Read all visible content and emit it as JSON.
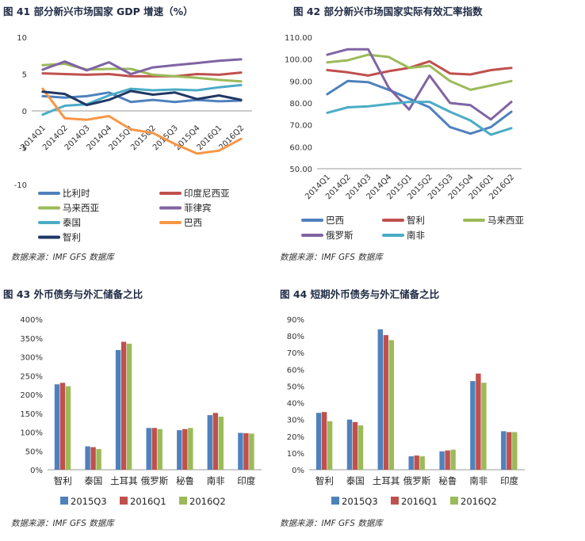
{
  "colors": {
    "blue": "#4f81bd",
    "red": "#c0504d",
    "green": "#9bbb59",
    "purple": "#8064a2",
    "teal": "#4bacc6",
    "orange": "#f79646",
    "navy": "#1f3864"
  },
  "chart_data": [
    {
      "type": "line",
      "title": "图 41  部分新兴市场国家 GDP 增速（%）",
      "source": "数据来源：IMF GFS 数据库",
      "x": [
        "2014Q1",
        "2014Q2",
        "2014Q3",
        "2014Q4",
        "2015Q1",
        "2015Q2",
        "2015Q3",
        "2015Q4",
        "2016Q1",
        "2016Q2"
      ],
      "ylim": [
        -10,
        10
      ],
      "yticks": [
        "10",
        "5",
        "0",
        "-5",
        "-10"
      ],
      "ytick_values": [
        10,
        5,
        0,
        -5,
        -10
      ],
      "legend_position": "bottom",
      "series": [
        {
          "name": "比利时",
          "color": "blue",
          "values": [
            2.0,
            1.8,
            2.0,
            2.5,
            1.2,
            1.5,
            1.2,
            1.5,
            1.3,
            1.4
          ]
        },
        {
          "name": "印度尼西亚",
          "color": "red",
          "values": [
            5.1,
            5.0,
            4.9,
            5.0,
            4.7,
            4.7,
            4.7,
            5.0,
            4.9,
            5.2
          ]
        },
        {
          "name": "马来西亚",
          "color": "green",
          "values": [
            6.2,
            6.4,
            5.6,
            5.7,
            5.7,
            4.9,
            4.7,
            4.5,
            4.2,
            4.0
          ]
        },
        {
          "name": "菲律宾",
          "color": "purple",
          "values": [
            5.6,
            6.7,
            5.5,
            6.6,
            5.0,
            5.9,
            6.2,
            6.5,
            6.8,
            7.0
          ]
        },
        {
          "name": "泰国",
          "color": "teal",
          "values": [
            -0.5,
            0.7,
            0.9,
            2.1,
            3.0,
            2.8,
            2.9,
            2.8,
            3.2,
            3.5
          ]
        },
        {
          "name": "巴西",
          "color": "orange",
          "values": [
            3.0,
            -1.0,
            -1.2,
            -0.7,
            -2.5,
            -3.0,
            -4.5,
            -5.8,
            -5.4,
            -3.8
          ]
        },
        {
          "name": "智利",
          "color": "navy",
          "values": [
            2.6,
            2.3,
            0.8,
            1.5,
            2.7,
            2.2,
            2.5,
            1.6,
            2.1,
            1.5
          ]
        }
      ]
    },
    {
      "type": "line",
      "title": "图 42  部分新兴市场国家实际有效汇率指数",
      "source": "数据来源：IMF GFS 数据库",
      "x": [
        "2014Q1",
        "2014Q2",
        "2014Q3",
        "2014Q4",
        "2015Q1",
        "2015Q2",
        "2015Q3",
        "2015Q4",
        "2016Q1",
        "2016Q2"
      ],
      "ylim": [
        50,
        110
      ],
      "yticks": [
        "110.00",
        "100.00",
        "90.00",
        "80.00",
        "70.00",
        "60.00",
        "50.00"
      ],
      "ytick_values": [
        110,
        100,
        90,
        80,
        70,
        60,
        50
      ],
      "legend_position": "bottom",
      "series": [
        {
          "name": "巴西",
          "color": "blue",
          "values": [
            84,
            90,
            89.5,
            86,
            82,
            78,
            69,
            66,
            69,
            76
          ]
        },
        {
          "name": "智利",
          "color": "red",
          "values": [
            95,
            94,
            92.5,
            94.5,
            96,
            99,
            93.5,
            93,
            95,
            96
          ]
        },
        {
          "name": "马来西亚",
          "color": "green",
          "values": [
            98.5,
            99.5,
            102,
            101,
            96,
            97,
            90,
            86,
            88,
            90
          ]
        },
        {
          "name": "俄罗斯",
          "color": "purple",
          "values": [
            102,
            104.5,
            104.5,
            87,
            77,
            92.5,
            80,
            79,
            72.5,
            80.5
          ]
        },
        {
          "name": "南非",
          "color": "teal",
          "values": [
            75.5,
            78,
            78.5,
            79.5,
            80.5,
            80.5,
            76,
            72,
            65.5,
            68.5
          ]
        }
      ]
    },
    {
      "type": "bar",
      "title": "图 43  外币债务与外汇储备之比",
      "source": "数据来源：IMF GFS 数据库",
      "categories": [
        "智利",
        "泰国",
        "土耳其",
        "俄罗斯",
        "秘鲁",
        "南非",
        "印度"
      ],
      "ylim": [
        0,
        400
      ],
      "yticks": [
        "400%",
        "350%",
        "300%",
        "250%",
        "200%",
        "150%",
        "100%",
        "50%",
        "0%"
      ],
      "ytick_values": [
        400,
        350,
        300,
        250,
        200,
        150,
        100,
        50,
        0
      ],
      "legend_position": "bottom",
      "series": [
        {
          "name": "2015Q3",
          "color": "blue",
          "values": [
            227,
            62,
            318,
            111,
            105,
            145,
            98
          ]
        },
        {
          "name": "2016Q1",
          "color": "red",
          "values": [
            231,
            60,
            340,
            111,
            108,
            151,
            97
          ]
        },
        {
          "name": "2016Q2",
          "color": "green",
          "values": [
            222,
            55,
            335,
            108,
            111,
            141,
            96
          ]
        }
      ]
    },
    {
      "type": "bar",
      "title": "图 44  短期外币债务与外汇储备之比",
      "source": "数据来源：IMF GFS 数据库",
      "categories": [
        "智利",
        "泰国",
        "土耳其",
        "俄罗斯",
        "秘鲁",
        "南非",
        "印度"
      ],
      "ylim": [
        0,
        90
      ],
      "yticks": [
        "90%",
        "80%",
        "70%",
        "60%",
        "50%",
        "40%",
        "30%",
        "20%",
        "10%",
        "0%"
      ],
      "ytick_values": [
        90,
        80,
        70,
        60,
        50,
        40,
        30,
        20,
        10,
        0
      ],
      "legend_position": "bottom",
      "series": [
        {
          "name": "2015Q3",
          "color": "blue",
          "values": [
            34,
            30,
            84,
            8,
            11,
            53,
            23
          ]
        },
        {
          "name": "2016Q1",
          "color": "red",
          "values": [
            34.5,
            28.5,
            80.5,
            8.5,
            11.5,
            57.5,
            22.5
          ]
        },
        {
          "name": "2016Q2",
          "color": "green",
          "values": [
            29,
            26.5,
            77.5,
            8,
            12,
            52,
            22.5
          ]
        }
      ]
    }
  ]
}
